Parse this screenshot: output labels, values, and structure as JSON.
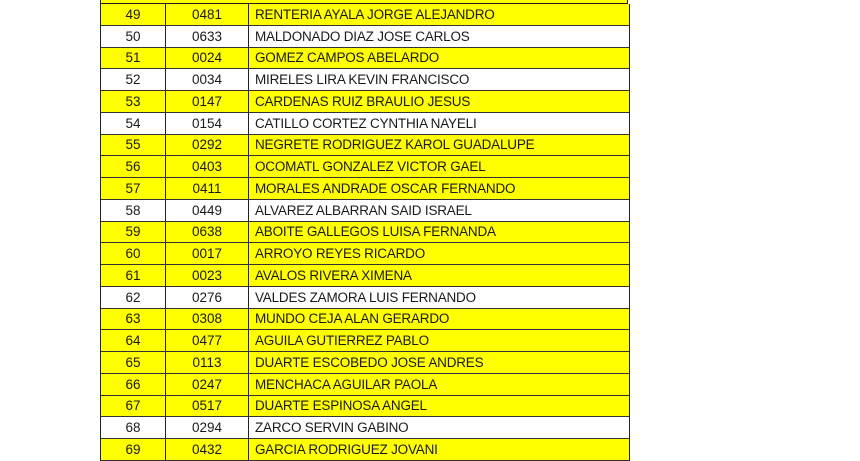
{
  "colors": {
    "highlight": "#ffff00",
    "plain": "#ffffff"
  },
  "rows": [
    {
      "num": "49",
      "code": "0481",
      "name": "RENTERIA AYALA JORGE ALEJANDRO",
      "highlight": true
    },
    {
      "num": "50",
      "code": "0633",
      "name": "MALDONADO DIAZ JOSE CARLOS",
      "highlight": false
    },
    {
      "num": "51",
      "code": "0024",
      "name": "GOMEZ CAMPOS ABELARDO",
      "highlight": true
    },
    {
      "num": "52",
      "code": "0034",
      "name": "MIRELES LIRA KEVIN FRANCISCO",
      "highlight": false
    },
    {
      "num": "53",
      "code": "0147",
      "name": "CARDENAS RUIZ BRAULIO JESUS",
      "highlight": true
    },
    {
      "num": "54",
      "code": "0154",
      "name": "CATILLO CORTEZ CYNTHIA NAYELI",
      "highlight": false
    },
    {
      "num": "55",
      "code": "0292",
      "name": "NEGRETE RODRIGUEZ KAROL GUADALUPE",
      "highlight": true
    },
    {
      "num": "56",
      "code": "0403",
      "name": "OCOMATL GONZALEZ VICTOR GAEL",
      "highlight": true
    },
    {
      "num": "57",
      "code": "0411",
      "name": "MORALES ANDRADE OSCAR FERNANDO",
      "highlight": true
    },
    {
      "num": "58",
      "code": "0449",
      "name": "ALVAREZ ALBARRAN SAID ISRAEL",
      "highlight": false
    },
    {
      "num": "59",
      "code": "0638",
      "name": "ABOITE GALLEGOS LUISA FERNANDA",
      "highlight": true
    },
    {
      "num": "60",
      "code": "0017",
      "name": "ARROYO REYES RICARDO",
      "highlight": true
    },
    {
      "num": "61",
      "code": "0023",
      "name": "AVALOS RIVERA XIMENA",
      "highlight": true
    },
    {
      "num": "62",
      "code": "0276",
      "name": "VALDES ZAMORA LUIS FERNANDO",
      "highlight": false
    },
    {
      "num": "63",
      "code": "0308",
      "name": "MUNDO CEJA ALAN GERARDO",
      "highlight": true
    },
    {
      "num": "64",
      "code": "0477",
      "name": "AGUILA GUTIERREZ PABLO",
      "highlight": true
    },
    {
      "num": "65",
      "code": "0113",
      "name": "DUARTE ESCOBEDO JOSE ANDRES",
      "highlight": true
    },
    {
      "num": "66",
      "code": "0247",
      "name": "MENCHACA AGUILAR PAOLA",
      "highlight": true
    },
    {
      "num": "67",
      "code": "0517",
      "name": "DUARTE ESPINOSA ANGEL",
      "highlight": true
    },
    {
      "num": "68",
      "code": "0294",
      "name": "ZARCO SERVIN GABINO",
      "highlight": false
    },
    {
      "num": "69",
      "code": "0432",
      "name": "GARCIA RODRIGUEZ JOVANI",
      "highlight": true
    }
  ]
}
